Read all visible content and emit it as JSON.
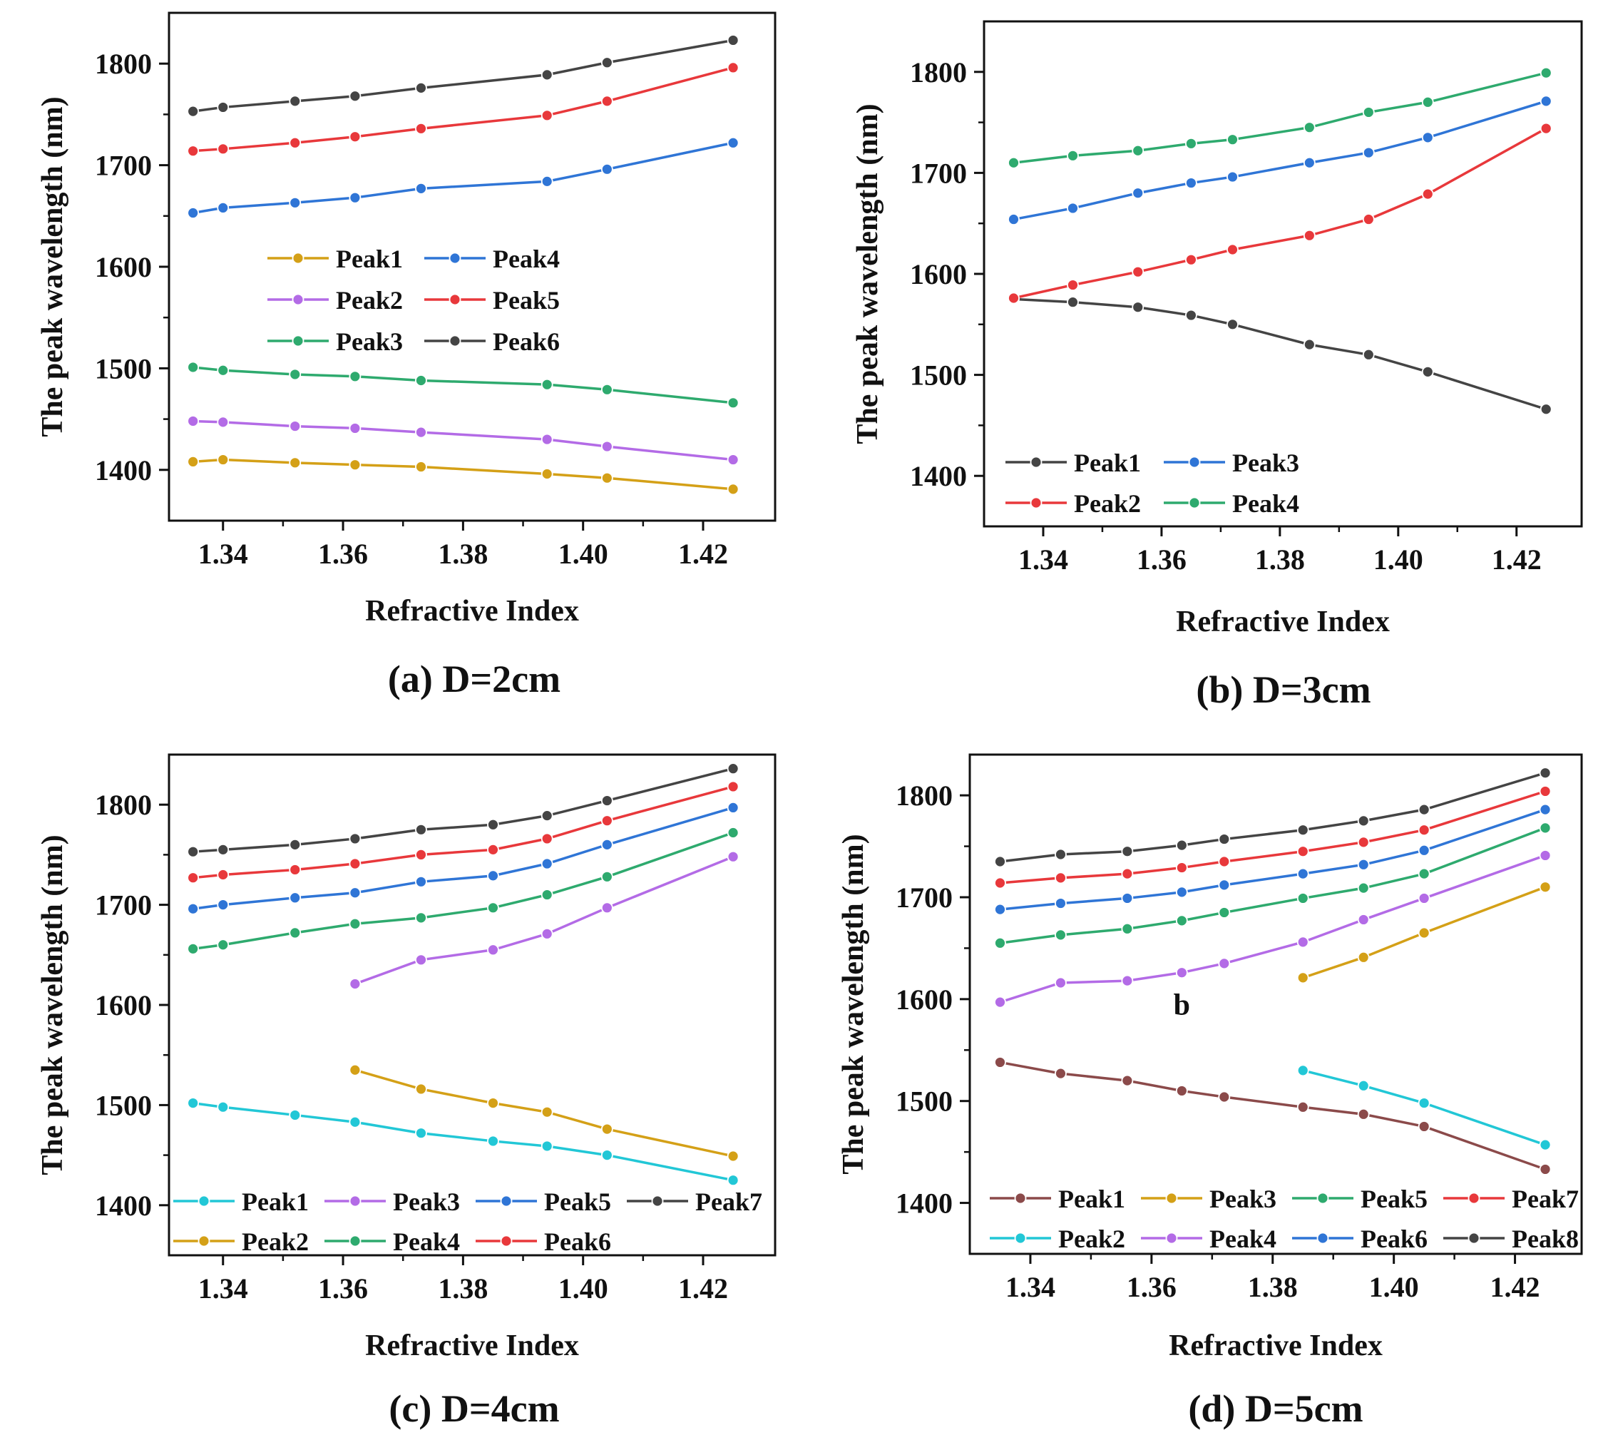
{
  "chart_data": [
    {
      "type": "line",
      "caption": "(a) D=2cm",
      "xlabel": "Refractive Index",
      "ylabel": "The peak wavelength (nm)",
      "xlim": [
        1.331,
        1.432
      ],
      "ylim": [
        1350,
        1850
      ],
      "xticks": [
        "1.34",
        "1.36",
        "1.38",
        "1.40",
        "1.42"
      ],
      "yticks": [
        "1400",
        "1500",
        "1600",
        "1700",
        "1800"
      ],
      "legend_position": "center-left",
      "legend_columns": 2,
      "series": [
        {
          "name": "Peak1",
          "color": "#d4a017",
          "x": [
            1.335,
            1.34,
            1.352,
            1.362,
            1.373,
            1.394,
            1.404,
            1.425
          ],
          "values": [
            1408,
            1410,
            1407,
            1405,
            1403,
            1396,
            1392,
            1381
          ]
        },
        {
          "name": "Peak2",
          "color": "#b36be6",
          "x": [
            1.335,
            1.34,
            1.352,
            1.362,
            1.373,
            1.394,
            1.404,
            1.425
          ],
          "values": [
            1448,
            1447,
            1443,
            1441,
            1437,
            1430,
            1423,
            1410
          ]
        },
        {
          "name": "Peak3",
          "color": "#2eaa6e",
          "x": [
            1.335,
            1.34,
            1.352,
            1.362,
            1.373,
            1.394,
            1.404,
            1.425
          ],
          "values": [
            1501,
            1498,
            1494,
            1492,
            1488,
            1484,
            1479,
            1466
          ]
        },
        {
          "name": "Peak4",
          "color": "#2f75d6",
          "x": [
            1.335,
            1.34,
            1.352,
            1.362,
            1.373,
            1.394,
            1.404,
            1.425
          ],
          "values": [
            1653,
            1658,
            1663,
            1668,
            1677,
            1684,
            1696,
            1722
          ]
        },
        {
          "name": "Peak5",
          "color": "#e8383b",
          "x": [
            1.335,
            1.34,
            1.352,
            1.362,
            1.373,
            1.394,
            1.404,
            1.425
          ],
          "values": [
            1714,
            1716,
            1722,
            1728,
            1736,
            1749,
            1763,
            1796
          ]
        },
        {
          "name": "Peak6",
          "color": "#444444",
          "x": [
            1.335,
            1.34,
            1.352,
            1.362,
            1.373,
            1.394,
            1.404,
            1.425
          ],
          "values": [
            1753,
            1757,
            1763,
            1768,
            1776,
            1789,
            1801,
            1823
          ]
        }
      ]
    },
    {
      "type": "line",
      "caption": "(b) D=3cm",
      "xlabel": "Refractive Index",
      "ylabel": "The peak wavelength (nm)",
      "xlim": [
        1.33,
        1.431
      ],
      "ylim": [
        1350,
        1850
      ],
      "xticks": [
        "1.34",
        "1.36",
        "1.38",
        "1.40",
        "1.42"
      ],
      "yticks": [
        "1400",
        "1500",
        "1600",
        "1700",
        "1800"
      ],
      "legend_position": "bottom-left",
      "legend_columns": 2,
      "series": [
        {
          "name": "Peak1",
          "color": "#444444",
          "x": [
            1.335,
            1.345,
            1.356,
            1.365,
            1.372,
            1.385,
            1.395,
            1.405,
            1.425
          ],
          "values": [
            1575,
            1572,
            1567,
            1559,
            1550,
            1530,
            1520,
            1503,
            1466
          ]
        },
        {
          "name": "Peak2",
          "color": "#e8383b",
          "x": [
            1.335,
            1.345,
            1.356,
            1.365,
            1.372,
            1.385,
            1.395,
            1.405,
            1.425
          ],
          "values": [
            1576,
            1589,
            1602,
            1614,
            1624,
            1638,
            1654,
            1679,
            1744
          ]
        },
        {
          "name": "Peak3",
          "color": "#2f75d6",
          "x": [
            1.335,
            1.345,
            1.356,
            1.365,
            1.372,
            1.385,
            1.395,
            1.405,
            1.425
          ],
          "values": [
            1654,
            1665,
            1680,
            1690,
            1696,
            1710,
            1720,
            1735,
            1771
          ]
        },
        {
          "name": "Peak4",
          "color": "#2eaa6e",
          "x": [
            1.335,
            1.345,
            1.356,
            1.365,
            1.372,
            1.385,
            1.395,
            1.405,
            1.425
          ],
          "values": [
            1710,
            1717,
            1722,
            1729,
            1733,
            1745,
            1760,
            1770,
            1799
          ]
        }
      ]
    },
    {
      "type": "line",
      "caption": "(c) D=4cm",
      "xlabel": "Refractive Index",
      "ylabel": "The peak wavelength (nm)",
      "xlim": [
        1.331,
        1.432
      ],
      "ylim": [
        1350,
        1850
      ],
      "xticks": [
        "1.34",
        "1.36",
        "1.38",
        "1.40",
        "1.42"
      ],
      "yticks": [
        "1400",
        "1500",
        "1600",
        "1700",
        "1800"
      ],
      "legend_position": "bottom",
      "legend_columns": 4,
      "series": [
        {
          "name": "Peak1",
          "color": "#22c7d6",
          "x": [
            1.335,
            1.34,
            1.352,
            1.362,
            1.373,
            1.385,
            1.394,
            1.404,
            1.425
          ],
          "values": [
            1502,
            1498,
            1490,
            1483,
            1472,
            1464,
            1459,
            1450,
            1425
          ]
        },
        {
          "name": "Peak2",
          "color": "#d4a017",
          "x": [
            1.362,
            1.373,
            1.385,
            1.394,
            1.404,
            1.425
          ],
          "values": [
            1535,
            1516,
            1502,
            1493,
            1476,
            1449
          ]
        },
        {
          "name": "Peak3",
          "color": "#b36be6",
          "x": [
            1.362,
            1.373,
            1.385,
            1.394,
            1.404,
            1.425
          ],
          "values": [
            1621,
            1645,
            1655,
            1671,
            1697,
            1748
          ]
        },
        {
          "name": "Peak4",
          "color": "#2eaa6e",
          "x": [
            1.335,
            1.34,
            1.352,
            1.362,
            1.373,
            1.385,
            1.394,
            1.404,
            1.425
          ],
          "values": [
            1656,
            1660,
            1672,
            1681,
            1687,
            1697,
            1710,
            1728,
            1772
          ]
        },
        {
          "name": "Peak5",
          "color": "#2f75d6",
          "x": [
            1.335,
            1.34,
            1.352,
            1.362,
            1.373,
            1.385,
            1.394,
            1.404,
            1.425
          ],
          "values": [
            1696,
            1700,
            1707,
            1712,
            1723,
            1729,
            1741,
            1760,
            1797
          ]
        },
        {
          "name": "Peak6",
          "color": "#e8383b",
          "x": [
            1.335,
            1.34,
            1.352,
            1.362,
            1.373,
            1.385,
            1.394,
            1.404,
            1.425
          ],
          "values": [
            1727,
            1730,
            1735,
            1741,
            1750,
            1755,
            1766,
            1784,
            1818
          ]
        },
        {
          "name": "Peak7",
          "color": "#444444",
          "x": [
            1.335,
            1.34,
            1.352,
            1.362,
            1.373,
            1.385,
            1.394,
            1.404,
            1.425
          ],
          "values": [
            1753,
            1755,
            1760,
            1766,
            1775,
            1780,
            1789,
            1804,
            1836
          ]
        }
      ]
    },
    {
      "type": "line",
      "caption": "(d) D=5cm",
      "xlabel": "Refractive Index",
      "ylabel": "The peak wavelength (nm)",
      "xlim": [
        1.33,
        1.431
      ],
      "ylim": [
        1350,
        1840
      ],
      "xticks": [
        "1.34",
        "1.36",
        "1.38",
        "1.40",
        "1.42"
      ],
      "yticks": [
        "1400",
        "1500",
        "1600",
        "1700",
        "1800"
      ],
      "annotation": "b",
      "legend_position": "bottom",
      "legend_columns": 4,
      "series": [
        {
          "name": "Peak1",
          "color": "#8b4a4a",
          "x": [
            1.335,
            1.345,
            1.356,
            1.365,
            1.372,
            1.385,
            1.395,
            1.405,
            1.425
          ],
          "values": [
            1538,
            1527,
            1520,
            1510,
            1504,
            1494,
            1487,
            1475,
            1433
          ]
        },
        {
          "name": "Peak2",
          "color": "#22c7d6",
          "x": [
            1.385,
            1.395,
            1.405,
            1.425
          ],
          "values": [
            1530,
            1515,
            1498,
            1457
          ]
        },
        {
          "name": "Peak3",
          "color": "#d4a017",
          "x": [
            1.385,
            1.395,
            1.405,
            1.425
          ],
          "values": [
            1621,
            1641,
            1665,
            1710
          ]
        },
        {
          "name": "Peak4",
          "color": "#b36be6",
          "x": [
            1.335,
            1.345,
            1.356,
            1.365,
            1.372,
            1.385,
            1.395,
            1.405,
            1.425
          ],
          "values": [
            1597,
            1616,
            1618,
            1626,
            1635,
            1656,
            1678,
            1699,
            1741
          ]
        },
        {
          "name": "Peak5",
          "color": "#2eaa6e",
          "x": [
            1.335,
            1.345,
            1.356,
            1.365,
            1.372,
            1.385,
            1.395,
            1.405,
            1.425
          ],
          "values": [
            1655,
            1663,
            1669,
            1677,
            1685,
            1699,
            1709,
            1723,
            1768
          ]
        },
        {
          "name": "Peak6",
          "color": "#2f75d6",
          "x": [
            1.335,
            1.345,
            1.356,
            1.365,
            1.372,
            1.385,
            1.395,
            1.405,
            1.425
          ],
          "values": [
            1688,
            1694,
            1699,
            1705,
            1712,
            1723,
            1732,
            1746,
            1786
          ]
        },
        {
          "name": "Peak7",
          "color": "#e8383b",
          "x": [
            1.335,
            1.345,
            1.356,
            1.365,
            1.372,
            1.385,
            1.395,
            1.405,
            1.425
          ],
          "values": [
            1714,
            1719,
            1723,
            1729,
            1735,
            1745,
            1754,
            1766,
            1804
          ]
        },
        {
          "name": "Peak8",
          "color": "#444444",
          "x": [
            1.335,
            1.345,
            1.356,
            1.365,
            1.372,
            1.385,
            1.395,
            1.405,
            1.425
          ],
          "values": [
            1735,
            1742,
            1745,
            1751,
            1757,
            1766,
            1775,
            1786,
            1822
          ]
        }
      ]
    }
  ]
}
